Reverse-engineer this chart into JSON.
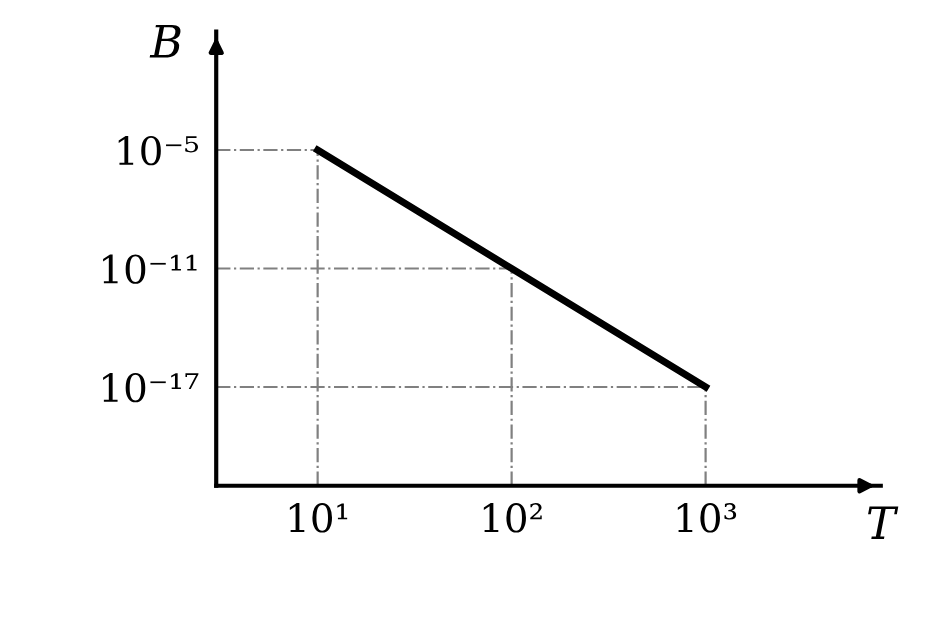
{
  "chart_data": {
    "type": "line",
    "xlabel": "T",
    "ylabel": "B",
    "log": "xy",
    "x": [
      10,
      100,
      1000
    ],
    "series": [
      {
        "color": "#000000",
        "values": [
          1e-05,
          1e-11,
          1e-17
        ]
      }
    ],
    "xlim": [
      3,
      8000
    ],
    "ylim": [
      1e-22,
      10.0
    ],
    "xticks": [
      {
        "value": 10,
        "label": "10¹"
      },
      {
        "value": 100,
        "label": "10²"
      },
      {
        "value": 1000,
        "label": "10³"
      }
    ],
    "yticks": [
      {
        "value": 1e-05,
        "label": "10⁻⁵"
      },
      {
        "value": 1e-11,
        "label": "10⁻¹¹"
      },
      {
        "value": 1e-17,
        "label": "10⁻¹⁷"
      }
    ],
    "ref_lines": [
      {
        "axis": "x",
        "value": 10,
        "color": "#808080",
        "line_style": "dashdot"
      },
      {
        "axis": "x",
        "value": 100,
        "color": "#808080",
        "line_style": "dashdot"
      },
      {
        "axis": "x",
        "value": 1000,
        "color": "#808080",
        "line_style": "dashdot"
      },
      {
        "axis": "y",
        "value": 1e-05,
        "color": "#808080",
        "line_style": "dashdot"
      },
      {
        "axis": "y",
        "value": 1e-11,
        "color": "#808080",
        "line_style": "dashdot"
      },
      {
        "axis": "y",
        "value": 1e-17,
        "color": "#808080",
        "line_style": "dashdot"
      }
    ],
    "grid": false,
    "legend": false
  }
}
